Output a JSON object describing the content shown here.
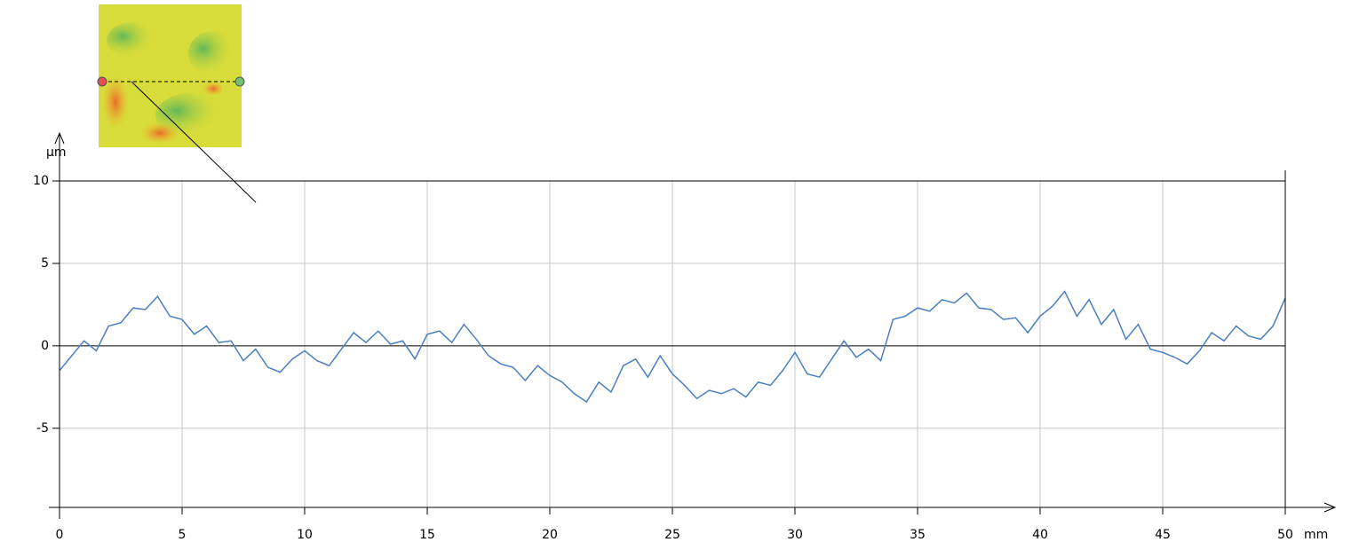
{
  "chart_data": {
    "type": "line",
    "y_unit": "µm",
    "x_unit": "mm",
    "x": [
      0,
      0.5,
      1,
      1.5,
      2,
      2.5,
      3,
      3.5,
      4,
      4.5,
      5,
      5.5,
      6,
      6.5,
      7,
      7.5,
      8,
      8.5,
      9,
      9.5,
      10,
      10.5,
      11,
      11.5,
      12,
      12.5,
      13,
      13.5,
      14,
      14.5,
      15,
      15.5,
      16,
      16.5,
      17,
      17.5,
      18,
      18.5,
      19,
      19.5,
      20,
      20.5,
      21,
      21.5,
      22,
      22.5,
      23,
      23.5,
      24,
      24.5,
      25,
      25.5,
      26,
      26.5,
      27,
      27.5,
      28,
      28.5,
      29,
      29.5,
      30,
      30.5,
      31,
      31.5,
      32,
      32.5,
      33,
      33.5,
      34,
      34.5,
      35,
      35.5,
      36,
      36.5,
      37,
      37.5,
      38,
      38.5,
      39,
      39.5,
      40,
      40.5,
      41,
      41.5,
      42,
      42.5,
      43,
      43.5,
      44,
      44.5,
      45,
      45.5,
      46,
      46.5,
      47,
      47.5,
      48,
      48.5,
      49,
      49.5,
      50
    ],
    "series": [
      {
        "color": "#4a7ec2",
        "values": [
          -1.5,
          -0.6,
          0.3,
          -0.3,
          1.2,
          1.4,
          2.3,
          2.2,
          3.0,
          1.8,
          1.6,
          0.7,
          1.2,
          0.2,
          0.3,
          -0.9,
          -0.2,
          -1.3,
          -1.6,
          -0.8,
          -0.3,
          -0.9,
          -1.2,
          -0.2,
          0.8,
          0.2,
          0.9,
          0.1,
          0.3,
          -0.8,
          0.7,
          0.9,
          0.2,
          1.3,
          0.4,
          -0.6,
          -1.1,
          -1.3,
          -2.1,
          -1.2,
          -1.8,
          -2.2,
          -2.9,
          -3.4,
          -2.2,
          -2.8,
          -1.2,
          -0.8,
          -1.9,
          -0.6,
          -1.7,
          -2.4,
          -3.2,
          -2.7,
          -2.9,
          -2.6,
          -3.1,
          -2.2,
          -2.4,
          -1.5,
          -0.4,
          -1.7,
          -1.9,
          -0.8,
          0.3,
          -0.7,
          -0.2,
          -0.9,
          1.6,
          1.8,
          2.3,
          2.1,
          2.8,
          2.6,
          3.2,
          2.3,
          2.2,
          1.6,
          1.7,
          0.8,
          1.8,
          2.4,
          3.3,
          1.8,
          2.8,
          1.3,
          2.2,
          0.4,
          1.3,
          -0.2,
          -0.4,
          -0.7,
          -1.1,
          -0.3,
          0.8,
          0.3,
          1.2,
          0.6,
          0.4,
          1.2,
          2.9
        ]
      }
    ],
    "xlim": [
      0,
      50
    ],
    "ylim": [
      -9.8,
      10
    ],
    "xticks": [
      0,
      5,
      10,
      15,
      20,
      25,
      30,
      35,
      40,
      45,
      50
    ],
    "yticks": [
      10,
      5,
      0,
      -5
    ],
    "grid": true
  }
}
